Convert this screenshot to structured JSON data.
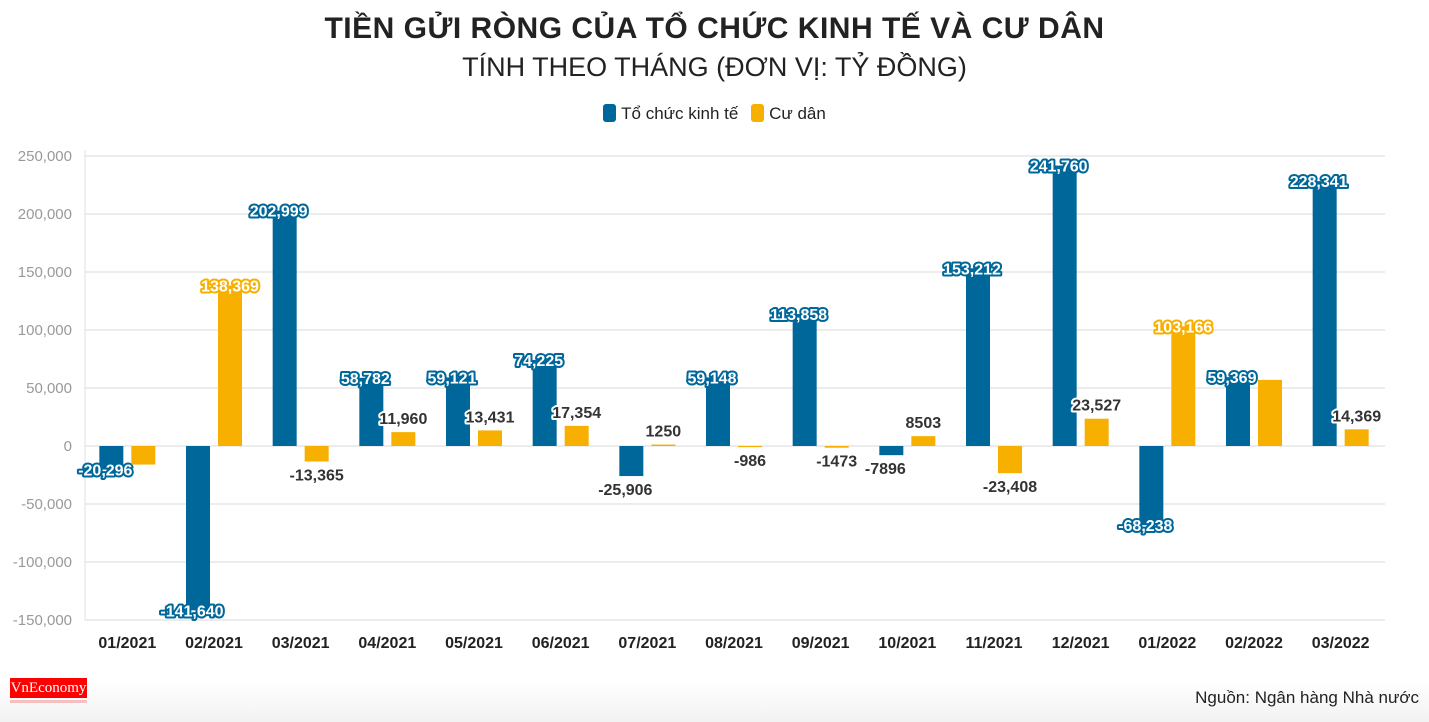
{
  "chart_data": {
    "type": "bar",
    "title": "TIỀN GỬI RÒNG CỦA TỔ CHỨC KINH TẾ VÀ CƯ DÂN",
    "subtitle": "TÍNH THEO THÁNG (ĐƠN VỊ: TỶ ĐỒNG)",
    "categories": [
      "01/2021",
      "02/2021",
      "03/2021",
      "04/2021",
      "05/2021",
      "06/2021",
      "07/2021",
      "08/2021",
      "09/2021",
      "10/2021",
      "11/2021",
      "12/2021",
      "01/2022",
      "02/2022",
      "03/2022"
    ],
    "series": [
      {
        "name": "Tổ chức kinh tế",
        "color": "#00679a",
        "values": [
          -20296,
          -141640,
          202999,
          58782,
          59121,
          74225,
          -25906,
          59148,
          113858,
          -7896,
          153212,
          241760,
          -68238,
          59369,
          228341
        ],
        "labels": [
          "-20,296",
          "-141,640",
          "202,999",
          "58,782",
          "59,121",
          "74,225",
          "-25,906",
          "59,148",
          "113,858",
          "-7896",
          "153,212",
          "241,760",
          "-68,238",
          "59,369",
          "228,341"
        ]
      },
      {
        "name": "Cư dân",
        "color": "#f7b000",
        "values": [
          -16000,
          138369,
          -13365,
          11960,
          13431,
          17354,
          1250,
          -986,
          -1473,
          8503,
          -23408,
          23527,
          103166,
          57000,
          14369
        ],
        "labels": [
          "",
          "138,369",
          "-13,365",
          "11,960",
          "13,431",
          "17,354",
          "1250",
          "-986",
          "-1473",
          "8503",
          "-23,408",
          "23,527",
          "103,166",
          "",
          "14,369"
        ]
      }
    ],
    "y_ticks": [
      "250,000",
      "200,000",
      "150,000",
      "100,000",
      "50,000",
      "0",
      "-50,000",
      "-100,000",
      "-150,000"
    ],
    "ylim": [
      -150000,
      250000
    ],
    "grid": true,
    "legend": "top"
  },
  "source": "Nguồn: Ngân hàng Nhà nước",
  "logo": "VnEconomy"
}
